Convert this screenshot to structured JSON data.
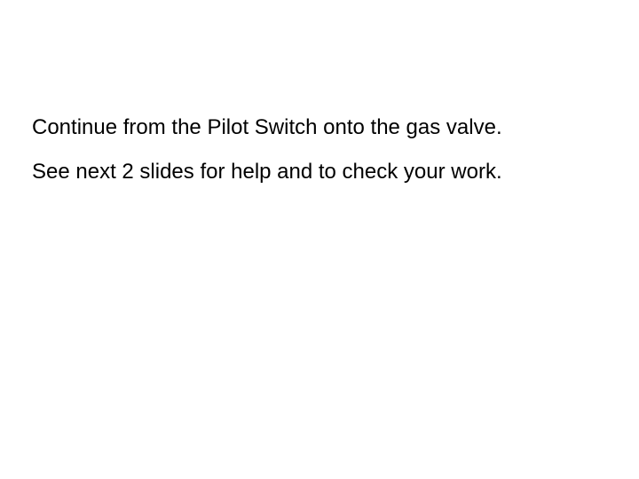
{
  "slide": {
    "background_color": "#ffffff",
    "text_color": "#000000",
    "font_family": "Arial, Helvetica, sans-serif",
    "font_size_pt": 18,
    "lines": [
      "Continue from the Pilot Switch onto the gas valve.",
      "See next 2 slides for help and to check your work."
    ]
  }
}
